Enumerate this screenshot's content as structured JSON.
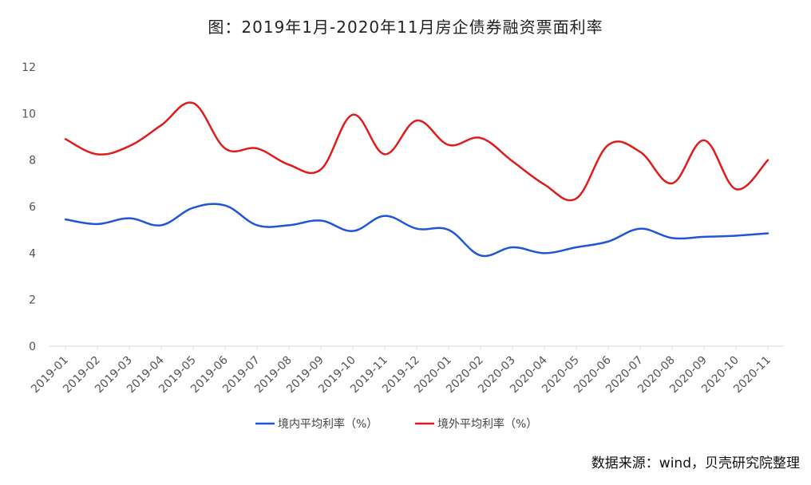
{
  "chart_data": {
    "type": "line",
    "title": "图：2019年1月-2020年11月房企债券融资票面利率",
    "categories": [
      "2019-01",
      "2019-02",
      "2019-03",
      "2019-04",
      "2019-05",
      "2019-06",
      "2019-07",
      "2019-08",
      "2019-09",
      "2019-10",
      "2019-11",
      "2019-12",
      "2020-01",
      "2020-02",
      "2020-03",
      "2020-04",
      "2020-05",
      "2020-06",
      "2020-07",
      "2020-08",
      "2020-09",
      "2020-10",
      "2020-11"
    ],
    "ylim": [
      0,
      12
    ],
    "yticks": [
      "0",
      "2",
      "4",
      "6",
      "8",
      "10",
      "12"
    ],
    "grid": false,
    "legend_position": "bottom",
    "series": [
      {
        "name": "境内平均利率（%）",
        "color": "#1f56d6",
        "values": [
          5.45,
          5.25,
          5.5,
          5.2,
          5.95,
          6.05,
          5.2,
          5.2,
          5.4,
          4.95,
          5.6,
          5.05,
          5.0,
          3.9,
          4.25,
          4.0,
          4.25,
          4.5,
          5.05,
          4.65,
          4.7,
          4.75,
          4.85
        ]
      },
      {
        "name": "境外平均利率（%）",
        "color": "#e01b1b",
        "values": [
          8.9,
          8.25,
          8.6,
          9.5,
          10.45,
          8.5,
          8.5,
          7.8,
          7.6,
          9.95,
          8.25,
          9.7,
          8.65,
          8.95,
          7.95,
          6.95,
          6.35,
          8.65,
          8.35,
          7.0,
          8.85,
          6.75,
          8.0
        ]
      }
    ]
  },
  "source_note": "数据来源：wind，贝壳研究院整理"
}
